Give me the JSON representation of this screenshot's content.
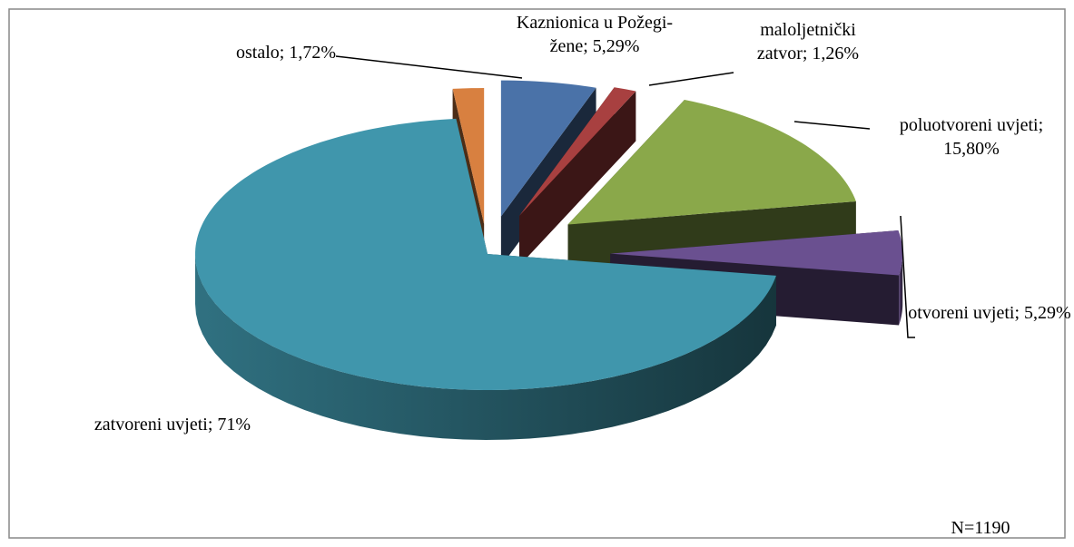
{
  "chart_data": {
    "type": "pie3d",
    "categories": [
      "Kaznionica u Požegi-žene;",
      "maloljetnički zatvor;",
      "poluotvoreni uvjeti;",
      "otvoreni uvjeti;",
      "zatvoreni uvjeti;",
      "ostalo;"
    ],
    "values": [
      5.29,
      1.26,
      15.8,
      5.29,
      71,
      1.72
    ],
    "value_labels": [
      "5,29%",
      "1,26%",
      "15,80%",
      "5,29%",
      "71%",
      "1,72%"
    ],
    "colors": [
      "#4a72a8",
      "#a84040",
      "#8aa84a",
      "#6a5090",
      "#4096ac",
      "#d88040"
    ],
    "annotation": "N=1190"
  }
}
